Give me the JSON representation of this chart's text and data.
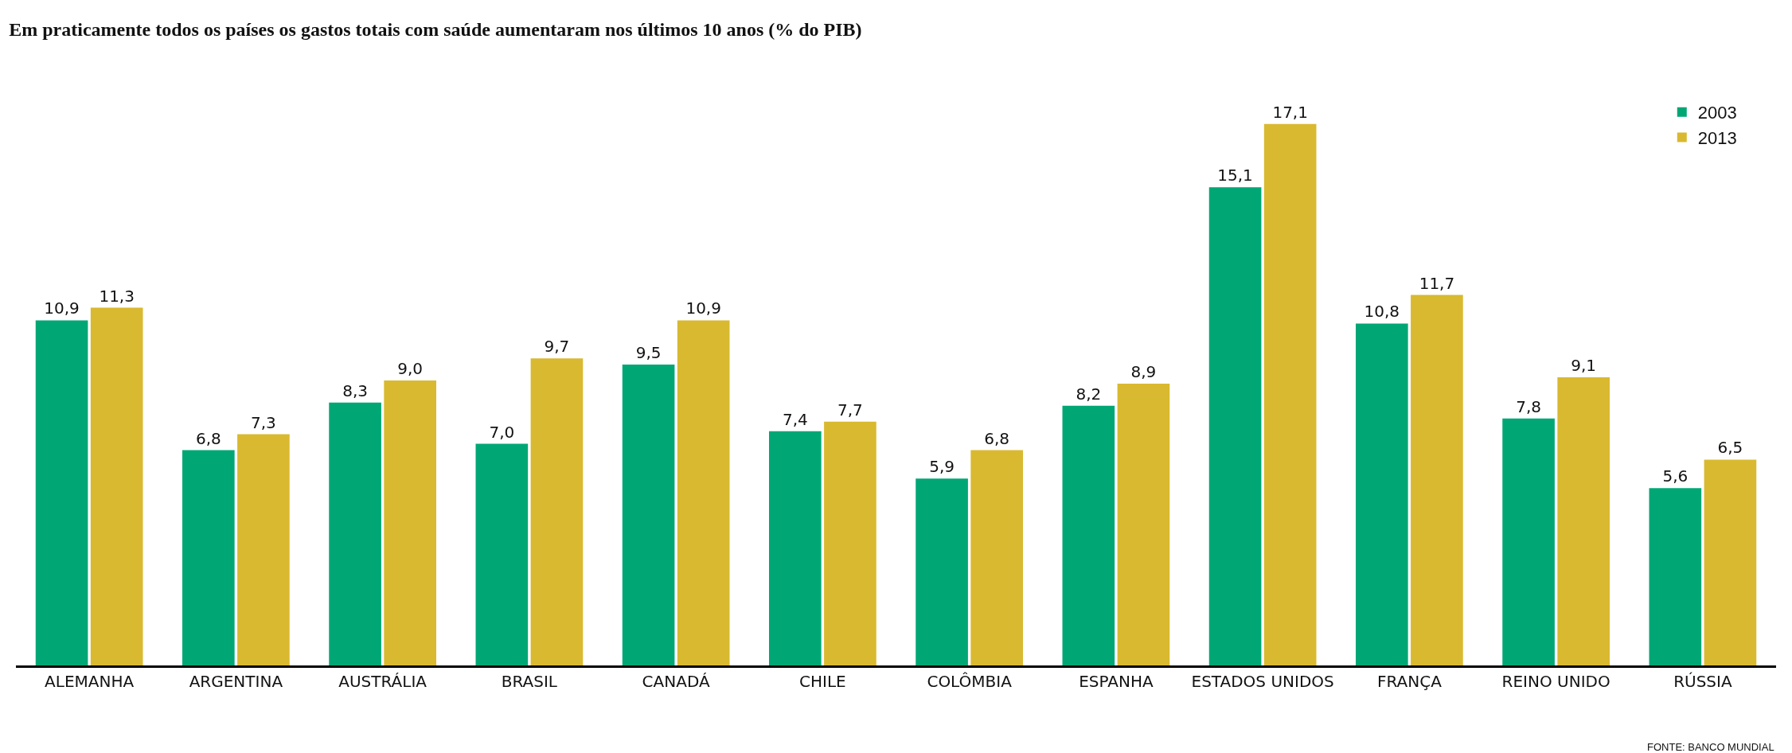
{
  "chart_data": {
    "type": "bar",
    "title": "Em praticamente todos os países os gastos totais com saúde aumentaram nos últimos 10 anos (% do PIB)",
    "categories": [
      "ALEMANHA",
      "ARGENTINA",
      "AUSTRÁLIA",
      "BRASIL",
      "CANADÁ",
      "CHILE",
      "COLÔMBIA",
      "ESPANHA",
      "ESTADOS UNIDOS",
      "FRANÇA",
      "REINO UNIDO",
      "RÚSSIA"
    ],
    "series": [
      {
        "name": "2003",
        "color": "#00a775",
        "values": [
          10.9,
          6.8,
          8.3,
          7.0,
          9.5,
          7.4,
          5.9,
          8.2,
          15.1,
          10.8,
          7.8,
          5.6
        ],
        "value_labels": [
          "10,9",
          "6,8",
          "8,3",
          "7,0",
          "9,5",
          "7,4",
          "5,9",
          "8,2",
          "15,1",
          "10,8",
          "7,8",
          "5,6"
        ]
      },
      {
        "name": "2013",
        "color": "#d9b92f",
        "values": [
          11.3,
          7.3,
          9.0,
          9.7,
          10.9,
          7.7,
          6.8,
          8.9,
          17.1,
          11.7,
          9.1,
          6.5
        ],
        "value_labels": [
          "11,3",
          "7,3",
          "9,0",
          "9,7",
          "10,9",
          "7,7",
          "6,8",
          "8,9",
          "17,1",
          "11,7",
          "9,1",
          "6,5"
        ]
      }
    ],
    "legend": "top right",
    "annotations": [
      "FONTE: BANCO MUNDIAL"
    ]
  }
}
